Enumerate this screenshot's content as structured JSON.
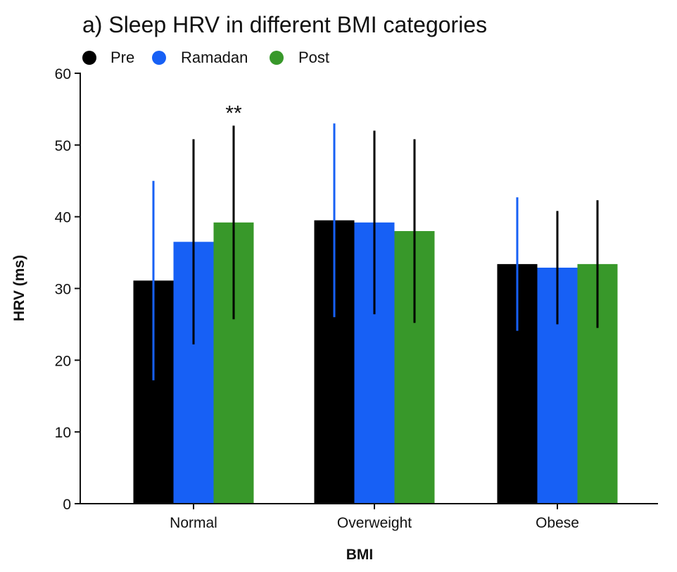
{
  "chart_data": {
    "type": "bar",
    "title": "a) Sleep HRV in different BMI categories",
    "xlabel": "BMI",
    "ylabel": "HRV (ms)",
    "ylim": [
      0,
      60
    ],
    "yticks": [
      0,
      10,
      20,
      30,
      40,
      50,
      60
    ],
    "categories": [
      "Normal",
      "Overweight",
      "Obese"
    ],
    "legend": {
      "placement": "top-left"
    },
    "series": [
      {
        "name": "Pre",
        "color": "#000000",
        "values": [
          31.1,
          39.5,
          33.4
        ],
        "errors": [
          13.9,
          13.5,
          9.3
        ],
        "error_color": "#1760f5"
      },
      {
        "name": "Ramadan",
        "color": "#1760f5",
        "values": [
          36.5,
          39.2,
          32.9
        ],
        "errors": [
          14.3,
          12.8,
          7.9
        ],
        "error_color": "#000000"
      },
      {
        "name": "Post",
        "color": "#38982a",
        "values": [
          39.2,
          38.0,
          33.4
        ],
        "errors": [
          13.5,
          12.8,
          8.9
        ],
        "error_color": "#000000"
      }
    ],
    "annotations": [
      {
        "text": "**",
        "category": "Normal",
        "series": "Post"
      }
    ]
  }
}
